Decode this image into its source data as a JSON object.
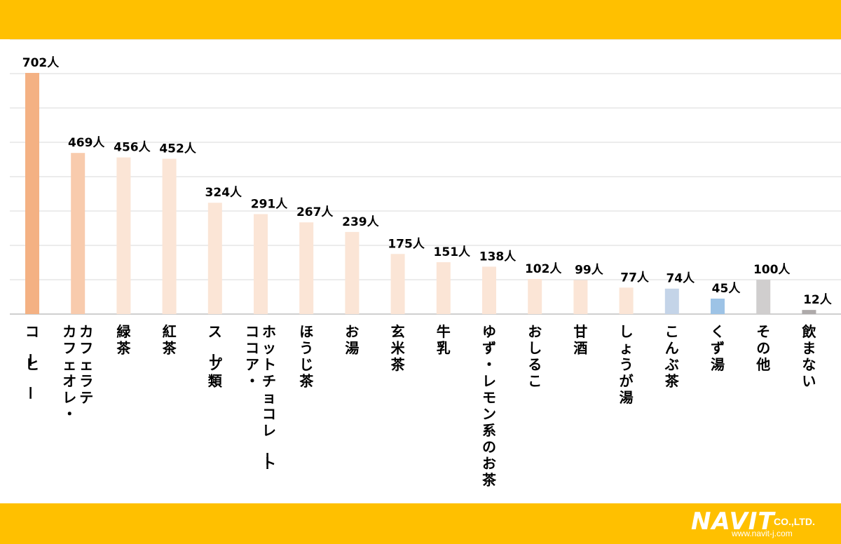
{
  "chart_data": {
    "type": "bar",
    "title": "",
    "xlabel": "",
    "ylabel": "",
    "ylim": [
      0,
      800
    ],
    "grid": true,
    "unit_suffix": "人",
    "categories": [
      "コーヒー",
      "カフェオレ・カフェラテ",
      "緑茶",
      "紅茶",
      "スープ類",
      "ココア・ホットチョコレート",
      "ほうじ茶",
      "お湯",
      "玄米茶",
      "牛乳",
      "ゆず・レモン系のお茶",
      "おしるこ",
      "甘酒",
      "しょうが湯",
      "こんぶ茶",
      "くず湯",
      "その他",
      "飲まない"
    ],
    "category_lines": [
      [
        "コーヒー"
      ],
      [
        "カフェオレ・",
        "カフェラテ"
      ],
      [
        "緑茶"
      ],
      [
        "紅茶"
      ],
      [
        "スープ類"
      ],
      [
        "ココア・",
        "ホットチョコレート"
      ],
      [
        "ほうじ茶"
      ],
      [
        "お湯"
      ],
      [
        "玄米茶"
      ],
      [
        "牛乳"
      ],
      [
        "ゆず・レモン系のお茶"
      ],
      [
        "おしるこ"
      ],
      [
        "甘酒"
      ],
      [
        "しょうが湯"
      ],
      [
        "こんぶ茶"
      ],
      [
        "くず湯"
      ],
      [
        "その他"
      ],
      [
        "飲まない"
      ]
    ],
    "values": [
      702,
      469,
      456,
      452,
      324,
      291,
      267,
      239,
      175,
      151,
      138,
      102,
      99,
      77,
      74,
      45,
      100,
      12
    ],
    "data_labels": [
      "702人",
      "469人",
      "456人",
      "452人",
      "324人",
      "291人",
      "267人",
      "239人",
      "175人",
      "151人",
      "138人",
      "102人",
      "99人",
      "77人",
      "74人",
      "45人",
      "100人",
      "12人"
    ],
    "colors": [
      "#f4b183",
      "#f8cbad",
      "#fbe5d6",
      "#fbe5d6",
      "#fbe5d6",
      "#fbe5d6",
      "#fbe5d6",
      "#fbe5d6",
      "#fbe5d6",
      "#fbe5d6",
      "#fbe5d6",
      "#fbe5d6",
      "#fbe5d6",
      "#fbe5d6",
      "#c4d4e8",
      "#9dc3e6",
      "#d0cece",
      "#aeaaaa"
    ]
  },
  "branding": {
    "logo_name": "NAVIT",
    "logo_suffix": "CO.,LTD.",
    "logo_url": "www.navit-j.com"
  },
  "colors": {
    "band": "#ffc000",
    "grid": "#d9d9d9",
    "text": "#000000"
  }
}
